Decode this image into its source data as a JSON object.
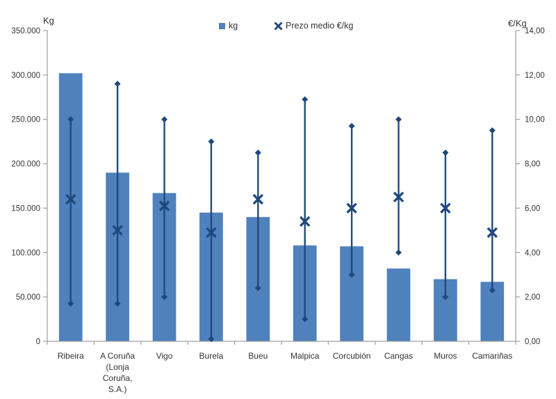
{
  "chart_data": {
    "type": "bar",
    "title": "",
    "categories": [
      "Ribeira",
      "A Coruña (Lonja Coruña, S.A.)",
      "Vigo",
      "Burela",
      "Bueu",
      "Malpica",
      "Corcubión",
      "Cangas",
      "Muros",
      "Camariñas"
    ],
    "category_lines": [
      [
        "Ribeira"
      ],
      [
        "A Coruña",
        "(Lonja",
        "Coruña,",
        "S.A.)"
      ],
      [
        "Vigo"
      ],
      [
        "Burela"
      ],
      [
        "Bueu"
      ],
      [
        "Malpica"
      ],
      [
        "Corcubión"
      ],
      [
        "Cangas"
      ],
      [
        "Muros"
      ],
      [
        "Camariñas"
      ]
    ],
    "series": [
      {
        "name": "kg",
        "render": "column",
        "axis": "left",
        "color": "#4f81bd",
        "values": [
          302000,
          190000,
          167000,
          145000,
          140000,
          108000,
          107000,
          82000,
          70000,
          67000
        ]
      },
      {
        "name": "Prezo medio €/kg",
        "render": "x-marker-with-range",
        "axis": "right",
        "color": "#1f497d",
        "values": [
          6.4,
          5.0,
          6.1,
          4.9,
          6.4,
          5.4,
          6.0,
          6.5,
          6.0,
          4.9
        ],
        "range_max": [
          10.0,
          11.6,
          10.0,
          9.0,
          8.5,
          10.9,
          9.7,
          10.0,
          8.5,
          9.5
        ],
        "range_min": [
          1.7,
          1.7,
          2.0,
          0.1,
          2.4,
          1.0,
          3.0,
          4.0,
          2.0,
          2.3
        ]
      }
    ],
    "left_axis": {
      "title": "Kg",
      "min": 0,
      "max": 350000,
      "step": 50000,
      "tick_labels": [
        "0",
        "50.000",
        "100.000",
        "150.000",
        "200.000",
        "250.000",
        "300.000",
        "350.000"
      ]
    },
    "right_axis": {
      "title": "€/Kg",
      "min": 0,
      "max": 14,
      "step": 2,
      "tick_labels": [
        "0,00",
        "2,00",
        "4,00",
        "6,00",
        "8,00",
        "10,00",
        "12,00",
        "14,00"
      ]
    },
    "legend": {
      "position": "top",
      "items": [
        {
          "label": "kg",
          "marker": "square",
          "color": "#4f81bd"
        },
        {
          "label": "Prezo medio €/kg",
          "marker": "x",
          "color": "#1f497d"
        }
      ]
    },
    "grid": false,
    "background": "#ffffff"
  }
}
